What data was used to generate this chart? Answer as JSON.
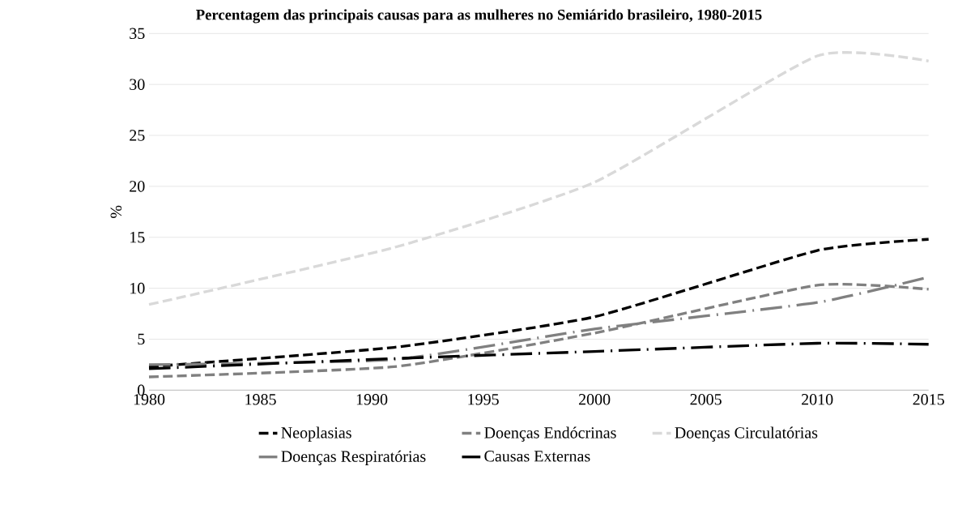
{
  "chart_data": {
    "type": "line",
    "title": "Percentagem das principais causas para as mulheres no Semiárido brasileiro, 1980-2015",
    "ylabel": "%",
    "x": [
      1980,
      1991,
      2000,
      2010,
      2015
    ],
    "series": [
      {
        "name": "Neoplasias",
        "color": "#000000",
        "line_style": "dashed",
        "values": [
          2.3,
          4.2,
          7.2,
          13.7,
          14.8
        ]
      },
      {
        "name": "Doenças Endócrinas",
        "color": "#808080",
        "line_style": "dashed",
        "values": [
          1.3,
          2.3,
          5.6,
          10.3,
          9.9
        ]
      },
      {
        "name": "Doenças Circulatórias",
        "color": "#d9d9d9",
        "line_style": "dashed",
        "values": [
          8.4,
          14.0,
          20.4,
          32.8,
          32.3
        ]
      },
      {
        "name": "Doenças Respiratórias",
        "color": "#808080",
        "line_style": "dashdot",
        "values": [
          2.5,
          3.0,
          6.0,
          8.6,
          11.1
        ]
      },
      {
        "name": "Causas Externas",
        "color": "#000000",
        "line_style": "dashdot",
        "values": [
          2.1,
          3.1,
          3.8,
          4.6,
          4.5
        ]
      }
    ],
    "xlim": [
      1980,
      2015
    ],
    "xticks": [
      1980,
      1985,
      1990,
      1995,
      2000,
      2005,
      2010,
      2015
    ],
    "ylim": [
      0,
      35
    ],
    "yticks": [
      0,
      5,
      10,
      15,
      20,
      25,
      30,
      35
    ],
    "grid": "y",
    "legend": "bottom",
    "marker": "none"
  }
}
